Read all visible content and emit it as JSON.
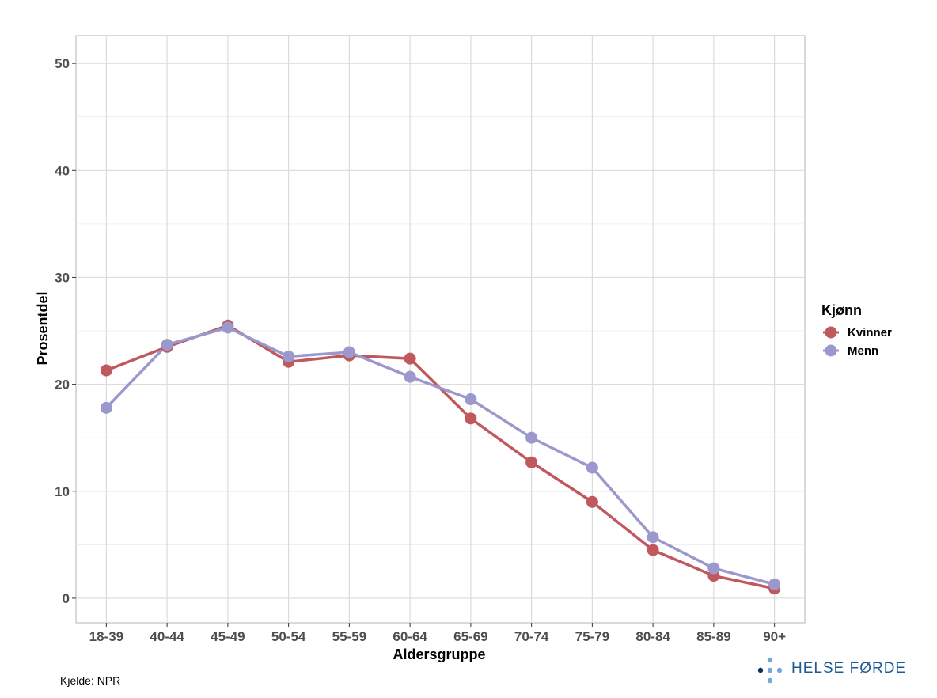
{
  "chart_data": {
    "type": "line",
    "xlabel": "Aldersgruppe",
    "ylabel": "Prosentdel",
    "categories": [
      "18-39",
      "40-44",
      "45-49",
      "50-54",
      "55-59",
      "60-64",
      "65-69",
      "70-74",
      "75-79",
      "80-84",
      "85-89",
      "90+"
    ],
    "yticks": [
      0,
      10,
      20,
      30,
      40,
      50
    ],
    "ylim": [
      -2.3,
      52.6
    ],
    "grid": true,
    "legend": {
      "title": "Kjønn",
      "placement": "right"
    },
    "series": [
      {
        "name": "Kvinner",
        "color": "#c0595e",
        "values": [
          21.3,
          23.5,
          25.5,
          22.1,
          22.7,
          22.4,
          16.8,
          12.7,
          9.0,
          4.5,
          2.1,
          0.9
        ]
      },
      {
        "name": "Menn",
        "color": "#9a98cc",
        "values": [
          17.8,
          23.7,
          25.3,
          22.6,
          23.0,
          20.7,
          18.6,
          15.0,
          12.2,
          5.7,
          2.8,
          1.3
        ]
      }
    ]
  },
  "source": "Kjelde: NPR",
  "logo": {
    "text": "HELSE FØRDE"
  }
}
